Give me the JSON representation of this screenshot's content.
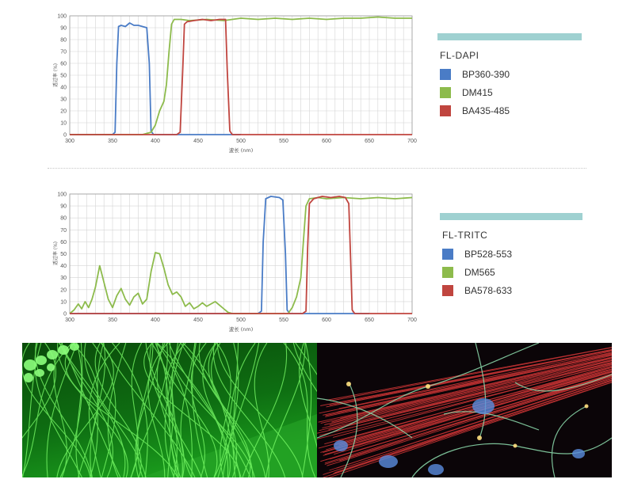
{
  "charts": [
    {
      "id": "fl-dapi",
      "legend_title": "FL-DAPI",
      "legend_bar_color": "#9fd1d1",
      "xlabel": "波长 (nm)",
      "ylabel": "透过率 (%)",
      "series": [
        {
          "name": "BP360-390",
          "color": "#4a7cc6"
        },
        {
          "name": "DM415",
          "color": "#8dbb4c"
        },
        {
          "name": "BA435-485",
          "color": "#c0453f"
        }
      ]
    },
    {
      "id": "fl-tritc",
      "legend_title": "FL-TRITC",
      "legend_bar_color": "#9fd1d1",
      "xlabel": "波长 (nm)",
      "ylabel": "透过率 (%)",
      "series": [
        {
          "name": "BP528-553",
          "color": "#4a7cc6"
        },
        {
          "name": "DM565",
          "color": "#8dbb4c"
        },
        {
          "name": "BA578-633",
          "color": "#c0453f"
        }
      ]
    }
  ],
  "chart_data": [
    {
      "type": "line",
      "xlabel": "波长 (nm)",
      "ylabel": "透过率 (%)",
      "xlim": [
        300,
        700
      ],
      "ylim": [
        0,
        100
      ],
      "xticks": [
        300,
        350,
        400,
        450,
        500,
        550,
        600,
        650,
        700
      ],
      "yticks": [
        0,
        10,
        20,
        30,
        40,
        50,
        60,
        70,
        80,
        90,
        100
      ],
      "grid": true,
      "legend": "right",
      "series": [
        {
          "name": "BP360-390",
          "color": "#4a7cc6",
          "points": [
            [
              300,
              0
            ],
            [
              350,
              0
            ],
            [
              353,
              2
            ],
            [
              355,
              60
            ],
            [
              357,
              91
            ],
            [
              360,
              92
            ],
            [
              365,
              91
            ],
            [
              370,
              94
            ],
            [
              375,
              92
            ],
            [
              380,
              92
            ],
            [
              385,
              91
            ],
            [
              390,
              90
            ],
            [
              393,
              60
            ],
            [
              395,
              3
            ],
            [
              398,
              0
            ],
            [
              500,
              0
            ]
          ]
        },
        {
          "name": "DM415",
          "color": "#8dbb4c",
          "points": [
            [
              300,
              0
            ],
            [
              385,
              0
            ],
            [
              395,
              2
            ],
            [
              400,
              8
            ],
            [
              405,
              20
            ],
            [
              410,
              28
            ],
            [
              413,
              42
            ],
            [
              416,
              70
            ],
            [
              419,
              93
            ],
            [
              422,
              97
            ],
            [
              430,
              97
            ],
            [
              440,
              96
            ],
            [
              460,
              97
            ],
            [
              480,
              96
            ],
            [
              500,
              98
            ],
            [
              520,
              97
            ],
            [
              540,
              98
            ],
            [
              560,
              97
            ],
            [
              580,
              98
            ],
            [
              600,
              97
            ],
            [
              620,
              98
            ],
            [
              640,
              98
            ],
            [
              660,
              99
            ],
            [
              680,
              98
            ],
            [
              700,
              98
            ]
          ]
        },
        {
          "name": "BA435-485",
          "color": "#c0453f",
          "points": [
            [
              300,
              0
            ],
            [
              425,
              0
            ],
            [
              429,
              2
            ],
            [
              432,
              55
            ],
            [
              434,
              93
            ],
            [
              437,
              95
            ],
            [
              445,
              96
            ],
            [
              455,
              97
            ],
            [
              465,
              96
            ],
            [
              475,
              97
            ],
            [
              482,
              97
            ],
            [
              484,
              55
            ],
            [
              487,
              3
            ],
            [
              490,
              0
            ],
            [
              700,
              0
            ]
          ]
        }
      ]
    },
    {
      "type": "line",
      "xlabel": "波长 (nm)",
      "ylabel": "透过率 (%)",
      "xlim": [
        300,
        700
      ],
      "ylim": [
        0,
        100
      ],
      "xticks": [
        300,
        350,
        400,
        450,
        500,
        550,
        600,
        650,
        700
      ],
      "yticks": [
        0,
        10,
        20,
        30,
        40,
        50,
        60,
        70,
        80,
        90,
        100
      ],
      "grid": true,
      "legend": "right",
      "series": [
        {
          "name": "BP528-553",
          "color": "#4a7cc6",
          "points": [
            [
              300,
              0
            ],
            [
              520,
              0
            ],
            [
              524,
              2
            ],
            [
              526,
              60
            ],
            [
              529,
              96
            ],
            [
              535,
              98
            ],
            [
              545,
              97
            ],
            [
              549,
              95
            ],
            [
              552,
              50
            ],
            [
              554,
              3
            ],
            [
              557,
              0
            ],
            [
              650,
              0
            ]
          ]
        },
        {
          "name": "DM565",
          "color": "#8dbb4c",
          "points": [
            [
              300,
              0
            ],
            [
              305,
              3
            ],
            [
              310,
              8
            ],
            [
              314,
              4
            ],
            [
              318,
              10
            ],
            [
              322,
              5
            ],
            [
              326,
              12
            ],
            [
              330,
              22
            ],
            [
              335,
              40
            ],
            [
              340,
              26
            ],
            [
              345,
              12
            ],
            [
              350,
              5
            ],
            [
              355,
              15
            ],
            [
              360,
              21
            ],
            [
              365,
              12
            ],
            [
              370,
              7
            ],
            [
              375,
              14
            ],
            [
              380,
              17
            ],
            [
              385,
              8
            ],
            [
              390,
              12
            ],
            [
              395,
              35
            ],
            [
              400,
              51
            ],
            [
              405,
              50
            ],
            [
              410,
              38
            ],
            [
              415,
              24
            ],
            [
              420,
              16
            ],
            [
              425,
              18
            ],
            [
              430,
              14
            ],
            [
              435,
              6
            ],
            [
              440,
              9
            ],
            [
              445,
              4
            ],
            [
              450,
              6
            ],
            [
              455,
              9
            ],
            [
              460,
              6
            ],
            [
              465,
              8
            ],
            [
              470,
              10
            ],
            [
              475,
              7
            ],
            [
              480,
              4
            ],
            [
              485,
              1
            ],
            [
              490,
              0
            ],
            [
              555,
              0
            ],
            [
              560,
              5
            ],
            [
              565,
              14
            ],
            [
              570,
              30
            ],
            [
              573,
              60
            ],
            [
              576,
              90
            ],
            [
              580,
              96
            ],
            [
              590,
              97
            ],
            [
              600,
              96
            ],
            [
              620,
              97
            ],
            [
              640,
              96
            ],
            [
              660,
              97
            ],
            [
              680,
              96
            ],
            [
              700,
              97
            ]
          ]
        },
        {
          "name": "BA578-633",
          "color": "#c0453f",
          "points": [
            [
              300,
              0
            ],
            [
              572,
              0
            ],
            [
              576,
              2
            ],
            [
              578,
              55
            ],
            [
              580,
              92
            ],
            [
              585,
              96
            ],
            [
              595,
              98
            ],
            [
              605,
              97
            ],
            [
              615,
              98
            ],
            [
              622,
              97
            ],
            [
              626,
              92
            ],
            [
              628,
              50
            ],
            [
              630,
              3
            ],
            [
              633,
              0
            ],
            [
              700,
              0
            ]
          ]
        }
      ]
    }
  ]
}
